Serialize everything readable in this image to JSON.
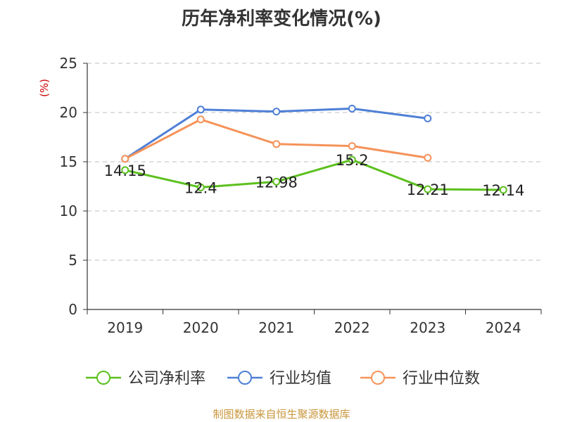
{
  "chart_data": {
    "type": "line",
    "title": "历年净利率变化情况(%)",
    "ylabel": "(%)",
    "xlabel": "",
    "categories": [
      "2019",
      "2020",
      "2021",
      "2022",
      "2023",
      "2024"
    ],
    "ylim": [
      0,
      25
    ],
    "yticks": [
      0,
      5,
      10,
      15,
      20,
      25
    ],
    "grid": true,
    "legend_position": "bottom",
    "series": [
      {
        "name": "公司净利率",
        "color": "#5cc01e",
        "values": [
          14.15,
          12.4,
          12.98,
          15.2,
          12.21,
          12.14
        ],
        "labels": [
          "14.15",
          "12.4",
          "12.98",
          "15.2",
          "12.21",
          "12.14"
        ]
      },
      {
        "name": "行业均值",
        "color": "#4e7fd6",
        "values": [
          15.3,
          20.3,
          20.1,
          20.4,
          19.4,
          null
        ]
      },
      {
        "name": "行业中位数",
        "color": "#f5935a",
        "values": [
          15.3,
          19.3,
          16.8,
          16.6,
          15.4,
          null
        ]
      }
    ]
  },
  "footer": {
    "source": "制图数据来自恒生聚源数据库"
  },
  "colors": {
    "axis": "#333333",
    "grid": "#cccccc",
    "ylabel": "#cc0000",
    "text": "#333333"
  }
}
